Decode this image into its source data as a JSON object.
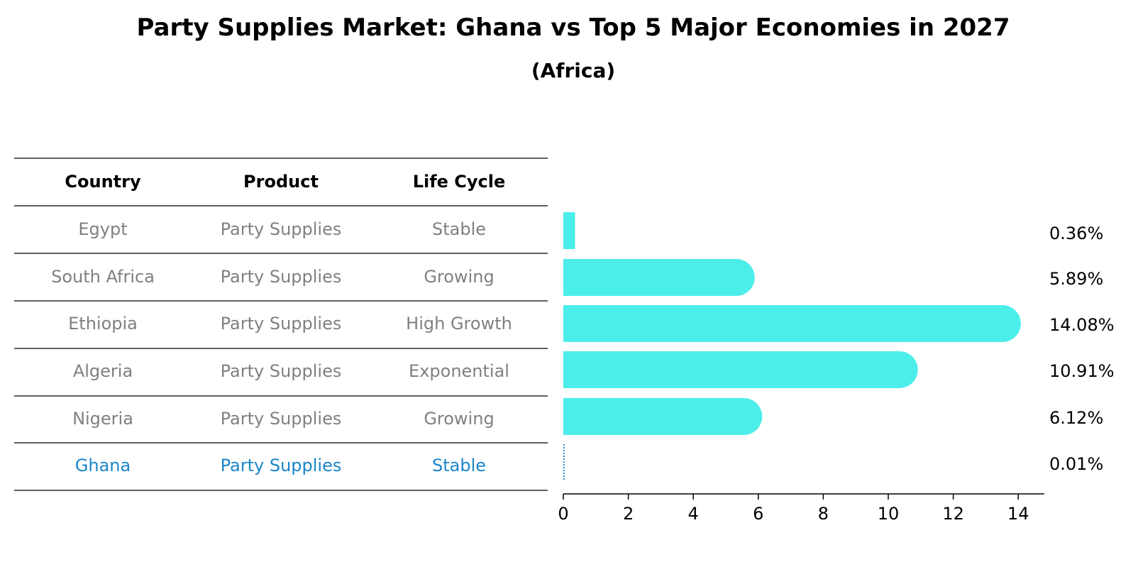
{
  "title": "Party Supplies Market: Ghana vs Top 5 Major Economies in 2027",
  "subtitle": "(Africa)",
  "table": {
    "headers": [
      "Country",
      "Product",
      "Life Cycle"
    ],
    "rows": [
      {
        "country": "Egypt",
        "product": "Party Supplies",
        "life_cycle": "Stable",
        "highlight": false
      },
      {
        "country": "South Africa",
        "product": "Party Supplies",
        "life_cycle": "Growing",
        "highlight": false
      },
      {
        "country": "Ethiopia",
        "product": "Party Supplies",
        "life_cycle": "High Growth",
        "highlight": false
      },
      {
        "country": "Algeria",
        "product": "Party Supplies",
        "life_cycle": "Exponential",
        "highlight": false
      },
      {
        "country": "Nigeria",
        "product": "Party Supplies",
        "life_cycle": "Growing",
        "highlight": false
      },
      {
        "country": "Ghana",
        "product": "Party Supplies",
        "life_cycle": "Stable",
        "highlight": true
      }
    ]
  },
  "colors": {
    "bar": "#4ceeea",
    "highlight": "#1a86c8",
    "muted_text": "#808080",
    "line": "#000000"
  },
  "chart_data": {
    "type": "bar",
    "orientation": "horizontal",
    "categories": [
      "Egypt",
      "South Africa",
      "Ethiopia",
      "Algeria",
      "Nigeria",
      "Ghana"
    ],
    "values": [
      0.36,
      5.89,
      14.08,
      10.91,
      6.12,
      0.01
    ],
    "value_labels": [
      "0.36%",
      "5.89%",
      "14.08%",
      "10.91%",
      "6.12%",
      "0.01%"
    ],
    "xlim": [
      0,
      14.8
    ],
    "xticks": [
      0,
      2,
      4,
      6,
      8,
      10,
      12,
      14
    ],
    "xtick_labels": [
      "0",
      "2",
      "4",
      "6",
      "8",
      "10",
      "12",
      "14"
    ],
    "grid": false,
    "legend": "none"
  }
}
